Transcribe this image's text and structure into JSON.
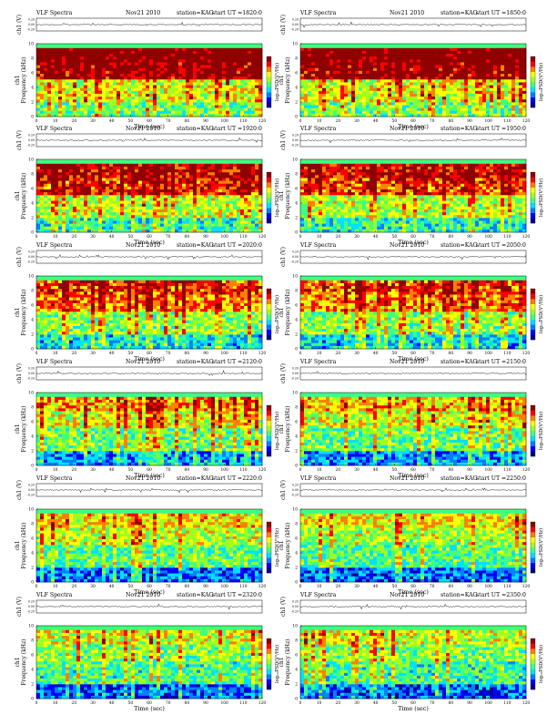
{
  "header": {
    "prefix": "VLF Spectra",
    "date": "Nov21 2010",
    "station": "station=KAG",
    "start_label": "start  UT  ="
  },
  "axes": {
    "time_label": "Time  (sec)",
    "freq_label": "Frequency  (kHz)",
    "channel_label": "ch1",
    "amp_label": "ch1 (V)",
    "colorbar_label": "log₁₀PSD(V²/Hz)"
  },
  "chart_data": [
    {
      "type": "heatmap",
      "start_ut": "1820:0",
      "x": [
        0,
        120
      ],
      "xlim": [
        0,
        120
      ],
      "ylim": [
        0,
        10
      ],
      "xticks": [
        0,
        10,
        20,
        30,
        40,
        50,
        60,
        70,
        80,
        90,
        100,
        110,
        120
      ],
      "yticks": [
        0,
        2,
        4,
        6,
        8,
        10
      ],
      "amp_ticks": [
        "0.20",
        "0.00",
        "-0.20"
      ],
      "activity": 0.95
    },
    {
      "type": "heatmap",
      "start_ut": "1850:0",
      "x": [
        0,
        120
      ],
      "xlim": [
        0,
        120
      ],
      "ylim": [
        0,
        10
      ],
      "xticks": [
        0,
        10,
        20,
        30,
        40,
        50,
        60,
        70,
        80,
        90,
        100,
        110,
        120
      ],
      "yticks": [
        0,
        2,
        4,
        6,
        8,
        10
      ],
      "amp_ticks": [
        "0.20",
        "0.00",
        "-0.20"
      ],
      "activity": 0.92
    },
    {
      "type": "heatmap",
      "start_ut": "1920:0",
      "x": [
        0,
        120
      ],
      "xlim": [
        0,
        120
      ],
      "ylim": [
        0,
        10
      ],
      "xticks": [
        0,
        10,
        20,
        30,
        40,
        50,
        60,
        70,
        80,
        90,
        100,
        110,
        120
      ],
      "yticks": [
        0,
        2,
        4,
        6,
        8,
        10
      ],
      "amp_ticks": [
        "0.20",
        "0.00",
        "-0.20"
      ],
      "activity": 0.75
    },
    {
      "type": "heatmap",
      "start_ut": "1950:0",
      "x": [
        0,
        120
      ],
      "xlim": [
        0,
        120
      ],
      "ylim": [
        0,
        10
      ],
      "xticks": [
        0,
        10,
        20,
        30,
        40,
        50,
        60,
        70,
        80,
        90,
        100,
        110,
        120
      ],
      "yticks": [
        0,
        2,
        4,
        6,
        8,
        10
      ],
      "amp_ticks": [
        "0.20",
        "0.00",
        "-0.20"
      ],
      "activity": 0.72
    },
    {
      "type": "heatmap",
      "start_ut": "2020:0",
      "x": [
        0,
        120
      ],
      "xlim": [
        0,
        120
      ],
      "ylim": [
        0,
        10
      ],
      "xticks": [
        0,
        10,
        20,
        30,
        40,
        50,
        60,
        70,
        80,
        90,
        100,
        110,
        120
      ],
      "yticks": [
        0,
        2,
        4,
        6,
        8,
        10
      ],
      "amp_ticks": [
        "0.20",
        "0.00",
        "-0.20"
      ],
      "activity": 0.6
    },
    {
      "type": "heatmap",
      "start_ut": "2050:0",
      "x": [
        0,
        120
      ],
      "xlim": [
        0,
        120
      ],
      "ylim": [
        0,
        10
      ],
      "xticks": [
        0,
        10,
        20,
        30,
        40,
        50,
        60,
        70,
        80,
        90,
        100,
        110,
        120
      ],
      "yticks": [
        0,
        2,
        4,
        6,
        8,
        10
      ],
      "amp_ticks": [
        "0.20",
        "0.00",
        "-0.20"
      ],
      "activity": 0.55
    },
    {
      "type": "heatmap",
      "start_ut": "2120:0",
      "x": [
        0,
        120
      ],
      "xlim": [
        0,
        120
      ],
      "ylim": [
        0,
        10
      ],
      "xticks": [
        0,
        10,
        20,
        30,
        40,
        50,
        60,
        70,
        80,
        90,
        100,
        110,
        120
      ],
      "yticks": [
        0,
        2,
        4,
        6,
        8,
        10
      ],
      "amp_ticks": [
        "0.20",
        "0.00",
        "-0.20"
      ],
      "activity": 0.4
    },
    {
      "type": "heatmap",
      "start_ut": "2150:0",
      "x": [
        0,
        120
      ],
      "xlim": [
        0,
        120
      ],
      "ylim": [
        0,
        10
      ],
      "xticks": [
        0,
        10,
        20,
        30,
        40,
        50,
        60,
        70,
        80,
        90,
        100,
        110,
        120
      ],
      "yticks": [
        0,
        2,
        4,
        6,
        8,
        10
      ],
      "amp_ticks": [
        "0.20",
        "0.00",
        "-0.20"
      ],
      "activity": 0.35
    },
    {
      "type": "heatmap",
      "start_ut": "2220:0",
      "x": [
        0,
        120
      ],
      "xlim": [
        0,
        120
      ],
      "ylim": [
        0,
        10
      ],
      "xticks": [
        0,
        10,
        20,
        30,
        40,
        50,
        60,
        70,
        80,
        90,
        100,
        110,
        120
      ],
      "yticks": [
        0,
        2,
        4,
        6,
        8,
        10
      ],
      "amp_ticks": [
        "0.20",
        "0.00",
        "-0.20"
      ],
      "activity": 0.3
    },
    {
      "type": "heatmap",
      "start_ut": "2250:0",
      "x": [
        0,
        120
      ],
      "xlim": [
        0,
        120
      ],
      "ylim": [
        0,
        10
      ],
      "xticks": [
        0,
        10,
        20,
        30,
        40,
        50,
        60,
        70,
        80,
        90,
        100,
        110,
        120
      ],
      "yticks": [
        0,
        2,
        4,
        6,
        8,
        10
      ],
      "amp_ticks": [
        "0.20",
        "0.00",
        "-0.20"
      ],
      "activity": 0.27
    },
    {
      "type": "heatmap",
      "start_ut": "2320:0",
      "x": [
        0,
        120
      ],
      "xlim": [
        0,
        120
      ],
      "ylim": [
        0,
        10
      ],
      "xticks": [
        0,
        10,
        20,
        30,
        40,
        50,
        60,
        70,
        80,
        90,
        100,
        110,
        120
      ],
      "yticks": [
        0,
        2,
        4,
        6,
        8,
        10
      ],
      "amp_ticks": [
        "0.20",
        "0.00",
        "-0.20"
      ],
      "activity": 0.22
    },
    {
      "type": "heatmap",
      "start_ut": "2350:0",
      "x": [
        0,
        120
      ],
      "xlim": [
        0,
        120
      ],
      "ylim": [
        0,
        10
      ],
      "xticks": [
        0,
        10,
        20,
        30,
        40,
        50,
        60,
        70,
        80,
        90,
        100,
        110,
        120
      ],
      "yticks": [
        0,
        2,
        4,
        6,
        8,
        10
      ],
      "amp_ticks": [
        "0.20",
        "0.00",
        "-0.20"
      ],
      "activity": 0.2
    }
  ],
  "colors": {
    "colormap": [
      "#000090",
      "#0000ff",
      "#0080ff",
      "#00e0ff",
      "#40ff80",
      "#a0ff20",
      "#ffff00",
      "#ff8000",
      "#ff0000",
      "#900000"
    ],
    "trace": "#000000"
  }
}
